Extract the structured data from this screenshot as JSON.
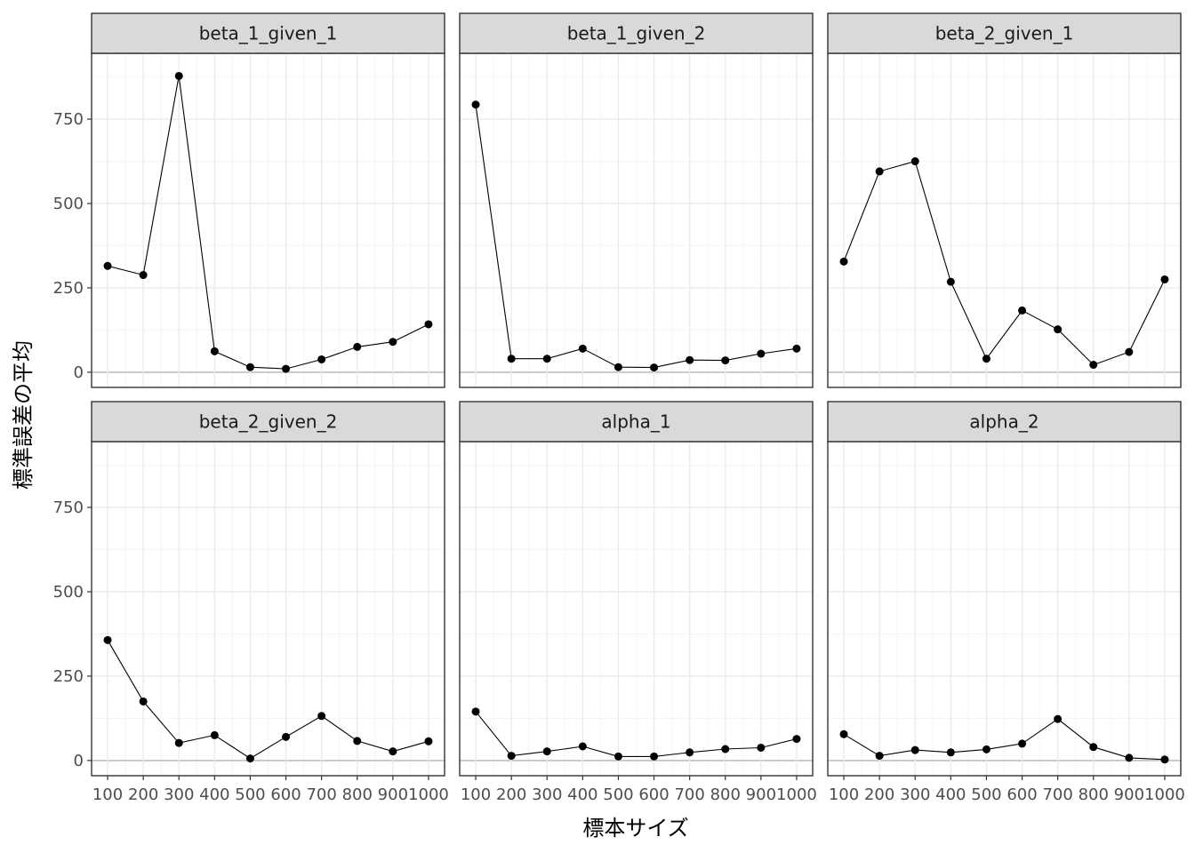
{
  "chart_data": {
    "type": "line",
    "xlabel": "標本サイズ",
    "ylabel": "標準誤差の平均",
    "x": [
      100,
      200,
      300,
      400,
      500,
      600,
      700,
      800,
      900,
      1000
    ],
    "x_tick_labels": [
      "100",
      "200",
      "300",
      "400",
      "500",
      "600",
      "700",
      "800",
      "900",
      "1000"
    ],
    "y_ticks": [
      0,
      250,
      500,
      750
    ],
    "y_tick_labels": [
      "0",
      "250",
      "500",
      "750"
    ],
    "xlim": [
      55,
      1045
    ],
    "ylim": [
      -45,
      945
    ],
    "grid": true,
    "panels": [
      {
        "title": "beta_1_given_1",
        "values": [
          315,
          288,
          878,
          62,
          15,
          10,
          38,
          75,
          90,
          142
        ]
      },
      {
        "title": "beta_1_given_2",
        "values": [
          793,
          40,
          40,
          70,
          15,
          14,
          36,
          35,
          55,
          70
        ]
      },
      {
        "title": "beta_2_given_1",
        "values": [
          328,
          595,
          625,
          268,
          40,
          183,
          127,
          22,
          60,
          275
        ]
      },
      {
        "title": "beta_2_given_2",
        "values": [
          357,
          175,
          52,
          75,
          6,
          70,
          132,
          58,
          27,
          57
        ]
      },
      {
        "title": "alpha_1",
        "values": [
          145,
          14,
          27,
          42,
          12,
          12,
          24,
          34,
          38,
          64
        ]
      },
      {
        "title": "alpha_2",
        "values": [
          78,
          14,
          31,
          24,
          33,
          50,
          123,
          40,
          8,
          3
        ]
      }
    ]
  },
  "colors": {
    "strip_bg": "#d9d9d9",
    "panel_border": "#333333",
    "grid_major": "#ebebeb",
    "grid_minor": "#f5f5f5",
    "zero_line": "#bfbfbf",
    "series": "#000000"
  }
}
